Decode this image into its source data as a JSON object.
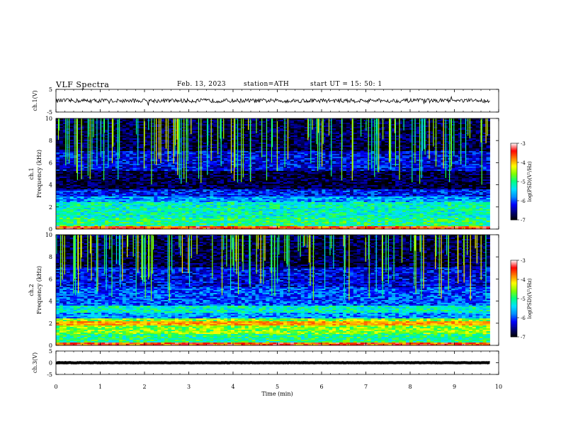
{
  "header": {
    "title": "VLF  Spectra",
    "date": "Feb. 13, 2023",
    "station": "station=ATH",
    "start": "start  UT  =    15: 50: 1"
  },
  "chart_data": [
    {
      "type": "line",
      "panel": "ch1-waveform",
      "ylabel": "ch.1(V)",
      "ylim": [
        -5,
        5
      ],
      "yticks": [
        "5",
        "-5"
      ],
      "xlim": [
        0,
        10
      ],
      "description_values": "noisy waveform around 0 V, amplitude about ±1 V, with spikes",
      "series": [
        {
          "values_approx_mean": 0
        }
      ]
    },
    {
      "type": "heatmap",
      "panel": "ch1-spectrogram",
      "ylabel": "ch.1\nFrequency  (kHz)",
      "ylim": [
        0,
        10
      ],
      "yticks": [
        "0",
        "2",
        "4",
        "6",
        "8",
        "10"
      ],
      "xlim": [
        0,
        10.0
      ],
      "colorbar": {
        "label": "log(PSD)(V²/Hz)",
        "ticks": [
          "-3",
          "-4",
          "-5",
          "-6",
          "-7"
        ],
        "range": [
          -7,
          -3
        ]
      }
    },
    {
      "type": "heatmap",
      "panel": "ch2-spectrogram",
      "ylabel": "ch.2\nFrequency  (kHz)",
      "ylim": [
        0,
        10
      ],
      "yticks": [
        "0",
        "2",
        "4",
        "6",
        "8",
        "10"
      ],
      "xlim": [
        0,
        10.0
      ],
      "colorbar": {
        "label": "log(PSD)(V²/Hz)",
        "ticks": [
          "-3",
          "-4",
          "-5",
          "-6",
          "-7"
        ],
        "range": [
          -7,
          -3
        ]
      }
    },
    {
      "type": "line",
      "panel": "ch3-waveform",
      "ylabel": "ch.3(V)",
      "ylim": [
        -5,
        5
      ],
      "yticks": [
        "5",
        "0",
        "-5"
      ],
      "xlim": [
        0,
        10
      ],
      "series": [
        {
          "values_approx_mean": 0
        }
      ]
    }
  ],
  "xaxis": {
    "label": "Time  (min)",
    "ticks": [
      "0",
      "1",
      "2",
      "3",
      "4",
      "5",
      "6",
      "7",
      "8",
      "9",
      "10"
    ],
    "data_end_min": 9.8
  },
  "colors": {
    "colormap": [
      "#000000",
      "#00007a",
      "#0000ff",
      "#0090ff",
      "#00e0ff",
      "#00ff80",
      "#80ff00",
      "#ffff00",
      "#ff8000",
      "#ff0000",
      "#ffffff"
    ]
  }
}
